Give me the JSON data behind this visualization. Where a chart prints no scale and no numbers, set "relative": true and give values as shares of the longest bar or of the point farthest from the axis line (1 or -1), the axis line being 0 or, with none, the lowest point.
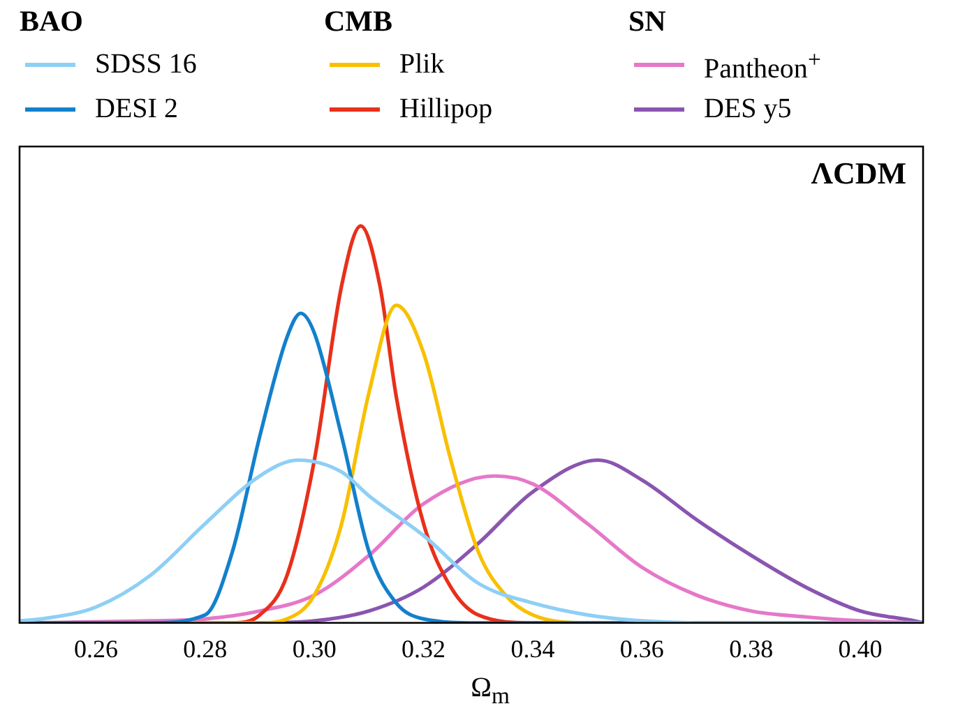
{
  "chart_data": {
    "type": "line",
    "relative": true,
    "xlabel": "Ω$_{m}$",
    "xlim": [
      0.246,
      0.4115
    ],
    "xticks": [
      0.26,
      0.28,
      {
        "value": 0.3,
        "label": "0.30"
      },
      0.32,
      0.34,
      0.36,
      0.38,
      {
        "value": 0.4,
        "label": "0.40"
      }
    ],
    "grid": false,
    "legend": "top",
    "marker": "none",
    "line_style": "solid",
    "annotations": [
      "BAO",
      "CMB",
      "SN",
      "ΛCDM"
    ],
    "series": [
      {
        "name": "SDSS 16",
        "color": "#8ecff5",
        "x": [
          0.246,
          0.25,
          0.26,
          0.27,
          0.28,
          0.29,
          0.297,
          0.305,
          0.31,
          0.32,
          0.33,
          0.34,
          0.35,
          0.36,
          0.37,
          0.4115
        ],
        "values": [
          0.005,
          0.01,
          0.04,
          0.12,
          0.25,
          0.37,
          0.41,
          0.38,
          0.32,
          0.22,
          0.1,
          0.05,
          0.02,
          0.005,
          0,
          0
        ]
      },
      {
        "name": "DESI 2",
        "color": "#1380cc",
        "x": [
          0.246,
          0.27,
          0.28,
          0.285,
          0.29,
          0.295,
          0.2975,
          0.3,
          0.305,
          0.31,
          0.315,
          0.32,
          0.33,
          0.4115
        ],
        "values": [
          0,
          0,
          0.02,
          0.18,
          0.47,
          0.72,
          0.78,
          0.73,
          0.47,
          0.18,
          0.05,
          0.01,
          0,
          0
        ]
      },
      {
        "name": "Plik",
        "color": "#f8c000",
        "x": [
          0.246,
          0.29,
          0.295,
          0.3,
          0.305,
          0.31,
          0.315,
          0.32,
          0.325,
          0.33,
          0.335,
          0.34,
          0.35,
          0.4115
        ],
        "values": [
          0,
          0,
          0.01,
          0.07,
          0.25,
          0.58,
          0.8,
          0.68,
          0.41,
          0.18,
          0.07,
          0.02,
          0,
          0
        ]
      },
      {
        "name": "Hillipop",
        "color": "#e8301a",
        "x": [
          0.246,
          0.285,
          0.29,
          0.295,
          0.3,
          0.305,
          0.3085,
          0.312,
          0.315,
          0.32,
          0.325,
          0.33,
          0.34,
          0.4115
        ],
        "values": [
          0,
          0,
          0.02,
          0.12,
          0.41,
          0.85,
          1,
          0.85,
          0.57,
          0.25,
          0.09,
          0.02,
          0,
          0
        ]
      },
      {
        "name": "Pantheon$^{+}$",
        "color": "#e678c8",
        "x": [
          0.246,
          0.27,
          0.28,
          0.29,
          0.3,
          0.31,
          0.32,
          0.333,
          0.34,
          0.35,
          0.36,
          0.37,
          0.38,
          0.39,
          0.4,
          0.4115
        ],
        "values": [
          0,
          0.005,
          0.01,
          0.03,
          0.07,
          0.17,
          0.3,
          0.37,
          0.35,
          0.25,
          0.14,
          0.07,
          0.03,
          0.015,
          0.005,
          0
        ]
      },
      {
        "name": "DES y5",
        "color": "#8a55b0",
        "x": [
          0.246,
          0.29,
          0.3,
          0.31,
          0.32,
          0.33,
          0.34,
          0.352,
          0.36,
          0.37,
          0.38,
          0.39,
          0.4,
          0.41,
          0.4115
        ],
        "values": [
          0,
          0,
          0.005,
          0.03,
          0.09,
          0.2,
          0.33,
          0.41,
          0.36,
          0.26,
          0.17,
          0.09,
          0.03,
          0.005,
          0
        ]
      }
    ]
  }
}
